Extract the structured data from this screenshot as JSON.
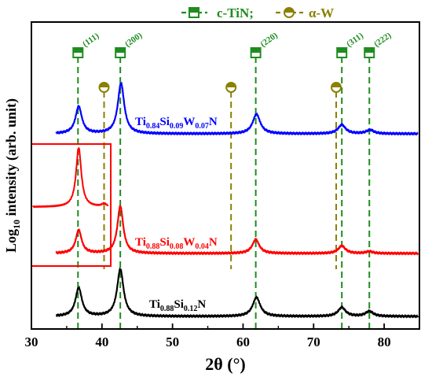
{
  "chart_data": {
    "type": "line",
    "xlabel": "2θ (°)",
    "ylabel_main": "Log",
    "ylabel_sub": "10",
    "ylabel_rest": " intensity (arb. unit)",
    "xlim": [
      30,
      85
    ],
    "xticks": [
      30,
      40,
      50,
      60,
      70,
      80
    ],
    "y_ticks_labeled": false,
    "legend": {
      "position": "top-center",
      "entries": [
        {
          "label": "c-TiN;",
          "marker": "half-filled-square",
          "color": "#1e8c1e",
          "line": "dashed"
        },
        {
          "label": "α-W",
          "marker": "half-filled-circle",
          "color": "#8b8000",
          "line": "dashed"
        }
      ]
    },
    "reference_lines": {
      "c_TiN": {
        "color": "#1e8c1e",
        "positions": [
          36.6,
          42.6,
          61.8,
          74.0,
          77.9
        ],
        "labels": [
          "(111)",
          "(200)",
          "(220)",
          "(311)",
          "(222)"
        ]
      },
      "alpha_W": {
        "color": "#8b8000",
        "positions": [
          40.3,
          58.3,
          73.2
        ]
      }
    },
    "series": [
      {
        "name_parts": [
          [
            "Ti",
            ""
          ],
          [
            "0.84",
            "sub"
          ],
          [
            "Si",
            ""
          ],
          [
            "0.09",
            "sub"
          ],
          [
            "W",
            ""
          ],
          [
            "0.07",
            "sub"
          ],
          [
            "N",
            ""
          ]
        ],
        "color": "#0000ff",
        "peaks": [
          {
            "x": 36.7,
            "height": 0.43,
            "width": 0.55
          },
          {
            "x": 42.7,
            "height": 0.8,
            "width": 0.55
          },
          {
            "x": 61.9,
            "height": 0.31,
            "width": 0.65
          },
          {
            "x": 74.0,
            "height": 0.14,
            "width": 0.65
          },
          {
            "x": 78.0,
            "height": 0.06,
            "width": 0.65
          }
        ]
      },
      {
        "name_parts": [
          [
            "Ti",
            ""
          ],
          [
            "0.88",
            "sub"
          ],
          [
            "Si",
            ""
          ],
          [
            "0.08",
            "sub"
          ],
          [
            "W",
            ""
          ],
          [
            "0.04",
            "sub"
          ],
          [
            "N",
            ""
          ]
        ],
        "color": "#ff0000",
        "peaks": [
          {
            "x": 36.7,
            "height": 0.37,
            "width": 0.5
          },
          {
            "x": 42.6,
            "height": 0.75,
            "width": 0.5
          },
          {
            "x": 61.8,
            "height": 0.22,
            "width": 0.6
          },
          {
            "x": 74.0,
            "height": 0.12,
            "width": 0.6
          },
          {
            "x": 77.9,
            "height": 0.03,
            "width": 0.6
          }
        ]
      },
      {
        "name_parts": [
          [
            "Ti",
            ""
          ],
          [
            "0.88",
            "sub"
          ],
          [
            "Si",
            ""
          ],
          [
            "0.12",
            "sub"
          ],
          [
            "N",
            ""
          ]
        ],
        "color": "#000000",
        "peaks": [
          {
            "x": 36.7,
            "height": 0.45,
            "width": 0.55
          },
          {
            "x": 42.6,
            "height": 0.75,
            "width": 0.55
          },
          {
            "x": 61.9,
            "height": 0.3,
            "width": 0.65
          },
          {
            "x": 74.0,
            "height": 0.14,
            "width": 0.65
          },
          {
            "x": 77.9,
            "height": 0.08,
            "width": 0.65
          }
        ]
      }
    ],
    "inset": {
      "color": "#ff0000",
      "box_color": "#ff0000",
      "xlim": [
        30,
        41
      ],
      "peaks": [
        {
          "x": 36.7,
          "height": 1.0,
          "width": 0.45
        },
        {
          "x": 40.3,
          "height": 0.05,
          "width": 0.4
        }
      ]
    }
  }
}
